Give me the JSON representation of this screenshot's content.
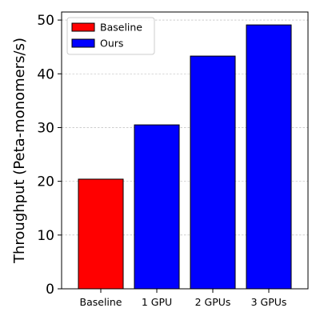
{
  "chart_data": {
    "type": "bar",
    "categories": [
      "Baseline",
      "1 GPU",
      "2 GPUs",
      "3 GPUs"
    ],
    "values": [
      20.4,
      30.5,
      43.3,
      49.1
    ],
    "series_of_category": [
      "Baseline",
      "Ours",
      "Ours",
      "Ours"
    ],
    "legend": [
      {
        "name": "Baseline",
        "color": "#ff0000"
      },
      {
        "name": "Ours",
        "color": "#0000ff"
      }
    ],
    "legend_location": "top-left",
    "title": "",
    "xlabel": "",
    "ylabel": "Throughput (Peta-monomers/s)",
    "ylim": [
      0,
      51.5
    ],
    "yticks": [
      0,
      10,
      20,
      30,
      40,
      50
    ],
    "grid": "y-dashed",
    "bar_edge_color": "#000000"
  }
}
